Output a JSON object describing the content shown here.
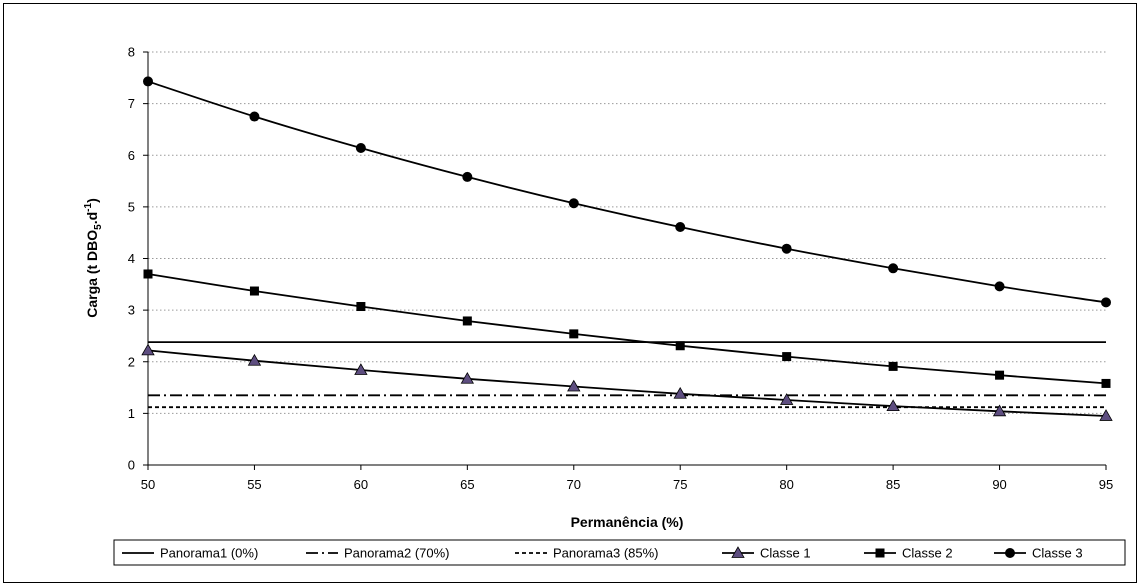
{
  "chart_data": {
    "type": "line",
    "title": "",
    "xlabel": "Permanência (%)",
    "ylabel": {
      "main": "Carga (t DBO",
      "sub": "5",
      "mid": ".d",
      "sup": "-1",
      "end": ")"
    },
    "x": [
      50,
      55,
      60,
      65,
      70,
      75,
      80,
      85,
      90,
      95
    ],
    "xlim": [
      50,
      95
    ],
    "xticks": [
      50,
      55,
      60,
      65,
      70,
      75,
      80,
      85,
      90,
      95
    ],
    "ylim": [
      0,
      8
    ],
    "yticks": [
      0,
      1,
      2,
      3,
      4,
      5,
      6,
      7,
      8
    ],
    "grid": "horizontal-dotted",
    "legend_position": "bottom",
    "series": [
      {
        "name": "Panorama1 (0%)",
        "style": "solid",
        "marker": "none",
        "values": [
          2.38,
          2.38,
          2.38,
          2.38,
          2.38,
          2.38,
          2.38,
          2.38,
          2.38,
          2.38
        ]
      },
      {
        "name": "Panorama2 (70%)",
        "style": "dashdot",
        "marker": "none",
        "values": [
          1.35,
          1.35,
          1.35,
          1.35,
          1.35,
          1.35,
          1.35,
          1.35,
          1.35,
          1.35
        ]
      },
      {
        "name": "Panorama3 (85%)",
        "style": "dashed",
        "marker": "none",
        "values": [
          1.12,
          1.12,
          1.12,
          1.12,
          1.12,
          1.12,
          1.12,
          1.12,
          1.12,
          1.12
        ]
      },
      {
        "name": "Classe 1",
        "style": "solid",
        "marker": "triangle",
        "values": [
          2.22,
          2.02,
          1.84,
          1.67,
          1.52,
          1.38,
          1.26,
          1.14,
          1.04,
          0.95
        ]
      },
      {
        "name": "Classe 2",
        "style": "solid",
        "marker": "square",
        "values": [
          3.7,
          3.37,
          3.07,
          2.79,
          2.54,
          2.31,
          2.1,
          1.91,
          1.74,
          1.58
        ]
      },
      {
        "name": "Classe 3",
        "style": "solid",
        "marker": "circle",
        "values": [
          7.43,
          6.75,
          6.14,
          5.58,
          5.07,
          4.61,
          4.19,
          3.81,
          3.46,
          3.15
        ]
      }
    ],
    "colors": {
      "line": "#000000",
      "triangle_fill": "#5e4e80",
      "grid": "#9a9a9a"
    }
  }
}
